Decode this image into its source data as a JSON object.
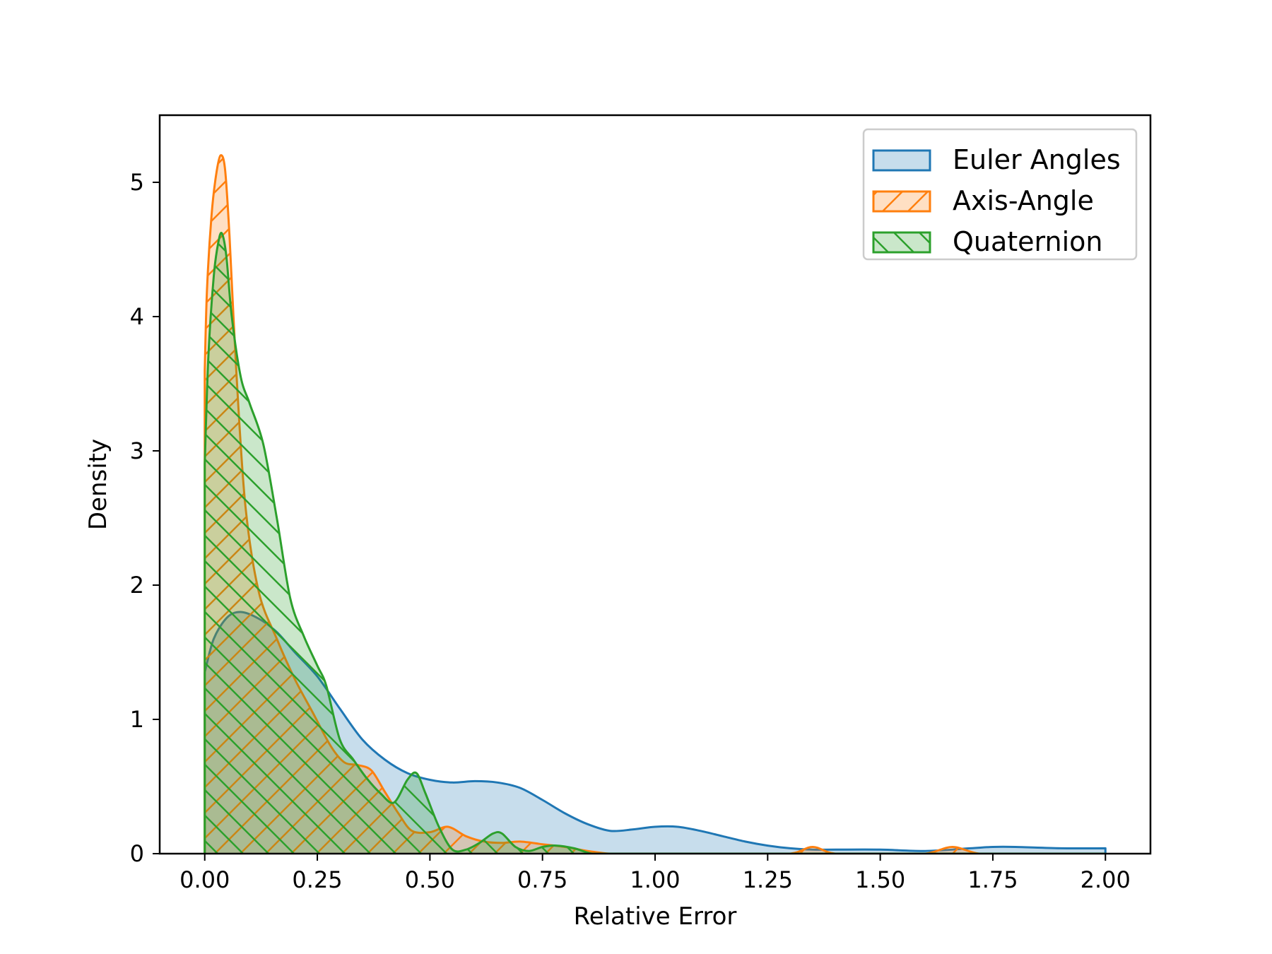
{
  "chart_data": {
    "type": "area",
    "title": "",
    "xlabel": "Relative Error",
    "ylabel": "Density",
    "xlim": [
      -0.1,
      2.1
    ],
    "ylim": [
      0,
      5.5
    ],
    "xticks": [
      "0.00",
      "0.25",
      "0.50",
      "0.75",
      "1.00",
      "1.25",
      "1.50",
      "1.75",
      "2.00"
    ],
    "xtick_values": [
      0,
      0.25,
      0.5,
      0.75,
      1.0,
      1.25,
      1.5,
      1.75,
      2.0
    ],
    "yticks": [
      "0",
      "1",
      "2",
      "3",
      "4",
      "5"
    ],
    "ytick_values": [
      0,
      1,
      2,
      3,
      4,
      5
    ],
    "grid": false,
    "legend_position": "top-right",
    "series": [
      {
        "name": "Euler Angles",
        "color": "#1f77b4",
        "hatch": "none",
        "x": [
          0,
          0.02,
          0.05,
          0.08,
          0.12,
          0.16,
          0.2,
          0.25,
          0.3,
          0.35,
          0.4,
          0.45,
          0.5,
          0.55,
          0.6,
          0.65,
          0.7,
          0.75,
          0.8,
          0.85,
          0.9,
          0.95,
          1.0,
          1.05,
          1.1,
          1.15,
          1.2,
          1.25,
          1.3,
          1.35,
          1.4,
          1.5,
          1.6,
          1.7,
          1.75,
          1.8,
          1.9,
          2.0
        ],
        "y": [
          1.35,
          1.6,
          1.76,
          1.8,
          1.75,
          1.65,
          1.5,
          1.32,
          1.08,
          0.85,
          0.7,
          0.6,
          0.55,
          0.53,
          0.54,
          0.53,
          0.49,
          0.4,
          0.3,
          0.22,
          0.17,
          0.18,
          0.2,
          0.2,
          0.17,
          0.13,
          0.09,
          0.06,
          0.04,
          0.03,
          0.03,
          0.03,
          0.02,
          0.04,
          0.05,
          0.05,
          0.04,
          0.04
        ]
      },
      {
        "name": "Axis-Angle",
        "color": "#ff7f0e",
        "hatch": "/",
        "x": [
          0,
          0.005,
          0.015,
          0.025,
          0.035,
          0.045,
          0.055,
          0.07,
          0.09,
          0.12,
          0.16,
          0.2,
          0.24,
          0.28,
          0.31,
          0.34,
          0.37,
          0.4,
          0.43,
          0.46,
          0.5,
          0.54,
          0.58,
          0.62,
          0.66,
          0.7,
          0.75,
          0.8,
          0.85,
          0.9,
          0.95,
          1.0,
          1.1,
          1.2,
          1.3,
          1.35,
          1.4,
          1.5,
          1.6,
          1.66,
          1.72,
          1.8,
          2.0
        ],
        "y": [
          3.6,
          4.2,
          4.75,
          5.05,
          5.2,
          5.1,
          4.6,
          3.6,
          2.6,
          1.95,
          1.6,
          1.3,
          1.05,
          0.8,
          0.68,
          0.66,
          0.62,
          0.46,
          0.3,
          0.17,
          0.16,
          0.2,
          0.13,
          0.09,
          0.08,
          0.09,
          0.07,
          0.05,
          0.02,
          0.0,
          0.0,
          0.0,
          0.0,
          0.0,
          0.0,
          0.05,
          0.0,
          0.0,
          0.0,
          0.05,
          0.0,
          0.0,
          0.0
        ]
      },
      {
        "name": "Quaternion",
        "color": "#2ca02c",
        "hatch": "\\",
        "x": [
          0,
          0.008,
          0.02,
          0.03,
          0.038,
          0.048,
          0.06,
          0.08,
          0.1,
          0.13,
          0.16,
          0.19,
          0.22,
          0.25,
          0.27,
          0.3,
          0.33,
          0.36,
          0.39,
          0.42,
          0.45,
          0.47,
          0.49,
          0.52,
          0.55,
          0.58,
          0.61,
          0.64,
          0.66,
          0.69,
          0.72,
          0.75,
          0.78,
          0.82,
          0.86,
          0.9,
          1.0,
          1.5,
          2.0
        ],
        "y": [
          2.9,
          3.7,
          4.3,
          4.55,
          4.62,
          4.45,
          4.0,
          3.55,
          3.35,
          3.05,
          2.5,
          1.9,
          1.62,
          1.4,
          1.25,
          0.85,
          0.7,
          0.56,
          0.45,
          0.38,
          0.55,
          0.6,
          0.45,
          0.2,
          0.03,
          0.03,
          0.08,
          0.15,
          0.15,
          0.05,
          0.02,
          0.05,
          0.06,
          0.04,
          0.0,
          0.0,
          0.0,
          0.0,
          0.0
        ]
      }
    ]
  }
}
